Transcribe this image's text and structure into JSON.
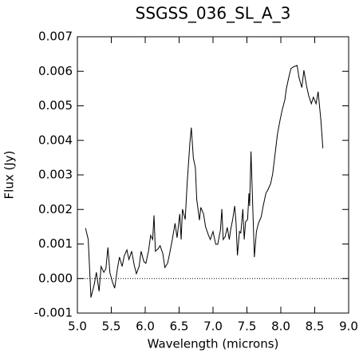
{
  "chart_data": {
    "type": "line",
    "title": "SSGSS_036_SL_A_3",
    "x_label": "Wavelength (microns)",
    "y_label": "Flux (Jy)",
    "xlim": [
      5.0,
      9.0
    ],
    "ylim": [
      -0.001,
      0.007
    ],
    "xticks": [
      {
        "value": 5,
        "label": "5.0"
      },
      {
        "value": 5.5,
        "label": "5.5"
      },
      {
        "value": 6,
        "label": "6.0"
      },
      {
        "value": 6.5,
        "label": "6.5"
      },
      {
        "value": 7,
        "label": "7.0"
      },
      {
        "value": 7.5,
        "label": "7.5"
      },
      {
        "value": 8,
        "label": "8.0"
      },
      {
        "value": 8.5,
        "label": "8.5"
      },
      {
        "value": 9,
        "label": "9.0"
      }
    ],
    "yticks": [
      -0.001,
      {
        "value": 0,
        "label": "0.000"
      },
      0.001,
      0.002,
      0.003,
      0.004,
      0.005,
      0.006,
      0.007
    ],
    "zero_line": true,
    "color": "#000000",
    "series": [
      {
        "color": "#000000",
        "x": [
          5.12,
          5.16,
          5.2,
          5.25,
          5.28,
          5.32,
          5.35,
          5.39,
          5.42,
          5.45,
          5.48,
          5.52,
          5.55,
          5.59,
          5.62,
          5.66,
          5.69,
          5.73,
          5.76,
          5.8,
          5.84,
          5.87,
          5.91,
          5.94,
          5.98,
          6.01,
          6.05,
          6.08,
          6.11,
          6.13,
          6.15,
          6.19,
          6.22,
          6.26,
          6.29,
          6.33,
          6.36,
          6.4,
          6.44,
          6.47,
          6.51,
          6.53,
          6.55,
          6.59,
          6.62,
          6.66,
          6.68,
          6.71,
          6.74,
          6.76,
          6.8,
          6.82,
          6.86,
          6.89,
          6.93,
          6.96,
          7.0,
          7.04,
          7.07,
          7.11,
          7.13,
          7.15,
          7.18,
          7.21,
          7.24,
          7.26,
          7.29,
          7.32,
          7.34,
          7.36,
          7.39,
          7.41,
          7.44,
          7.46,
          7.48,
          7.51,
          7.53,
          7.54,
          7.56,
          7.59,
          7.61,
          7.64,
          7.67,
          7.71,
          7.74,
          7.78,
          7.81,
          7.85,
          7.88,
          7.92,
          7.95,
          7.99,
          8.02,
          8.06,
          8.08,
          8.12,
          8.15,
          8.19,
          8.24,
          8.27,
          8.31,
          8.34,
          8.38,
          8.41,
          8.45,
          8.48,
          8.52,
          8.55,
          8.59,
          8.62
        ],
        "values": [
          0.00146,
          0.00113,
          -0.00055,
          -0.00016,
          0.00018,
          -0.00037,
          0.00035,
          0.00018,
          0.00028,
          0.0009,
          0.00016,
          -0.00012,
          -0.00028,
          0.00028,
          0.00062,
          0.00035,
          0.00065,
          0.00083,
          0.00055,
          0.00079,
          0.00037,
          0.00014,
          0.00035,
          0.00079,
          0.00049,
          0.00044,
          0.00081,
          0.00125,
          0.00113,
          0.00183,
          0.00079,
          0.00086,
          0.00095,
          0.00072,
          0.00032,
          0.00044,
          0.00072,
          0.00113,
          0.0016,
          0.00118,
          0.00187,
          0.00113,
          0.00201,
          0.00171,
          0.0028,
          0.00395,
          0.00437,
          0.00349,
          0.00321,
          0.00229,
          0.00169,
          0.00206,
          0.00187,
          0.0015,
          0.00127,
          0.00113,
          0.00136,
          0.00099,
          0.00099,
          0.00141,
          0.00201,
          0.00113,
          0.00122,
          0.00148,
          0.00113,
          0.00141,
          0.00171,
          0.0021,
          0.0016,
          0.00067,
          0.00136,
          0.00132,
          0.00201,
          0.00113,
          0.00164,
          0.00171,
          0.00247,
          0.0021,
          0.00368,
          0.00183,
          0.00062,
          0.00136,
          0.0016,
          0.00178,
          0.0021,
          0.00247,
          0.00257,
          0.00275,
          0.00303,
          0.00368,
          0.00418,
          0.0046,
          0.00488,
          0.00518,
          0.00548,
          0.00585,
          0.00608,
          0.00613,
          0.00617,
          0.0058,
          0.00553,
          0.00603,
          0.00557,
          0.0053,
          0.00506,
          0.00525,
          0.00506,
          0.00541,
          0.0046,
          0.00377
        ]
      }
    ]
  }
}
